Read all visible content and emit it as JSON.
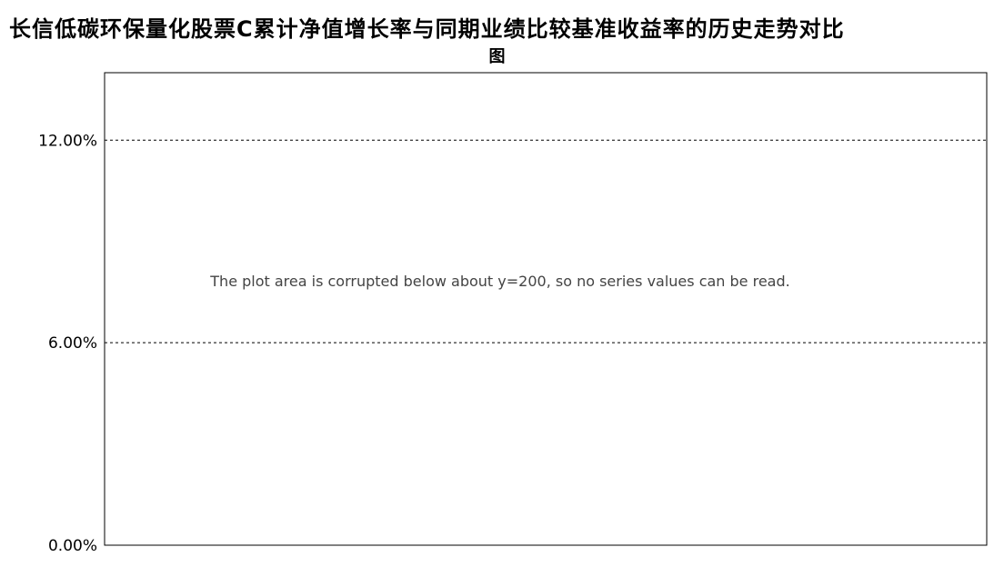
{
  "chart_data": {
    "type": "line",
    "title": [
      "长信低碳环保量化股票C累计净值增长率与同期业绩比较基准收益率的历史走势对比",
      "图"
    ],
    "y_tick_labels": [
      "12.00%",
      "6.00%",
      "0.00%"
    ],
    "y_ticks": [
      12,
      6,
      0
    ],
    "ylim": [
      0,
      14
    ],
    "series": [],
    "note": "The plot area is corrupted below about y=200, so no series values can be read."
  }
}
